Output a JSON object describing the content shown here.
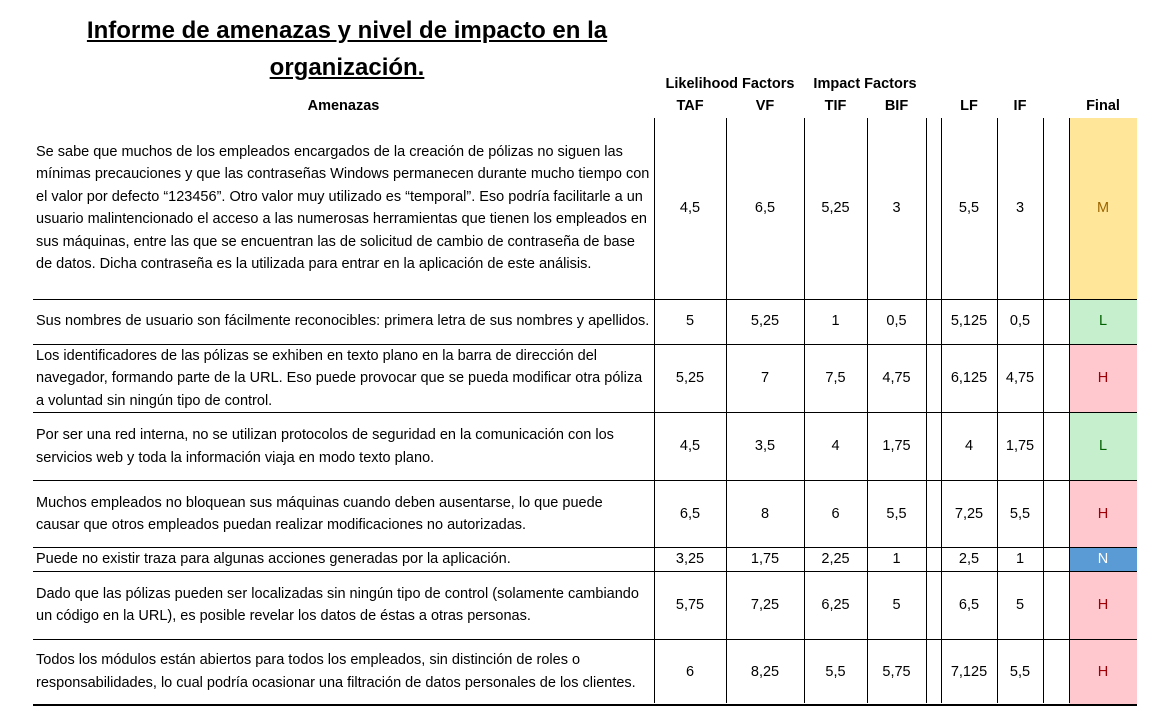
{
  "title": "Informe de amenazas y nivel de impacto en la organización.",
  "headers": {
    "group_likelihood": "Likelihood Factors",
    "group_impact": "Impact Factors",
    "threats": "Amenazas",
    "taf": "TAF",
    "vf": "VF",
    "tif": "TIF",
    "bif": "BIF",
    "lf": "LF",
    "if": "IF",
    "final": "Final"
  },
  "rows": [
    {
      "threat": "Se sabe que muchos de los empleados encargados de la creación de pólizas no siguen las mínimas precauciones y que las contraseñas Windows permanecen durante mucho tiempo con el valor por defecto “123456”. Otro valor muy utilizado es “temporal”. Eso podría facilitarle a un usuario malintencionado el acceso a las numerosas herramientas que tienen los empleados en sus máquinas, entre las que se encuentran las de solicitud de cambio de contraseña de base de datos. Dicha contraseña es la utilizada para entrar en la aplicación de este análisis.",
      "taf": "4,5",
      "vf": "6,5",
      "tif": "5,25",
      "bif": "3",
      "lf": "5,5",
      "if": "3",
      "final": "M"
    },
    {
      "threat": "Sus nombres de usuario son fácilmente reconocibles: primera letra de sus nombres y apellidos.",
      "taf": "5",
      "vf": "5,25",
      "tif": "1",
      "bif": "0,5",
      "lf": "5,125",
      "if": "0,5",
      "final": "L"
    },
    {
      "threat": "Los identificadores de las pólizas se exhiben en texto plano en la barra de dirección del navegador, formando parte de la URL. Eso puede provocar que se pueda modificar otra póliza a voluntad sin ningún tipo de control.",
      "taf": "5,25",
      "vf": "7",
      "tif": "7,5",
      "bif": "4,75",
      "lf": "6,125",
      "if": "4,75",
      "final": "H"
    },
    {
      "threat": "Por ser una red interna, no se utilizan protocolos de seguridad en la comunicación con los servicios web y toda la información viaja en modo texto plano.",
      "taf": "4,5",
      "vf": "3,5",
      "tif": "4",
      "bif": "1,75",
      "lf": "4",
      "if": "1,75",
      "final": "L"
    },
    {
      "threat": "Muchos empleados no bloquean sus máquinas cuando deben ausentarse, lo que puede causar que otros empleados puedan realizar modificaciones no autorizadas.",
      "taf": "6,5",
      "vf": "8",
      "tif": "6",
      "bif": "5,5",
      "lf": "7,25",
      "if": "5,5",
      "final": "H"
    },
    {
      "threat": "Puede no existir traza para algunas acciones generadas por la aplicación.",
      "taf": "3,25",
      "vf": "1,75",
      "tif": "2,25",
      "bif": "1",
      "lf": "2,5",
      "if": "1",
      "final": "N"
    },
    {
      "threat": "Dado que las pólizas pueden ser localizadas sin ningún tipo de control (solamente cambiando un código en la URL), es posible revelar los datos de éstas a otras personas.",
      "taf": "5,75",
      "vf": "7,25",
      "tif": "6,25",
      "bif": "5",
      "lf": "6,5",
      "if": "5",
      "final": "H"
    },
    {
      "threat": "Todos los módulos están abiertos para todos los empleados, sin distinción de roles o responsabilidades, lo cual podría ocasionar una filtración de datos personales de los clientes.",
      "taf": "6",
      "vf": "8,25",
      "tif": "5,5",
      "bif": "5,75",
      "lf": "7,125",
      "if": "5,5",
      "final": "H"
    }
  ]
}
